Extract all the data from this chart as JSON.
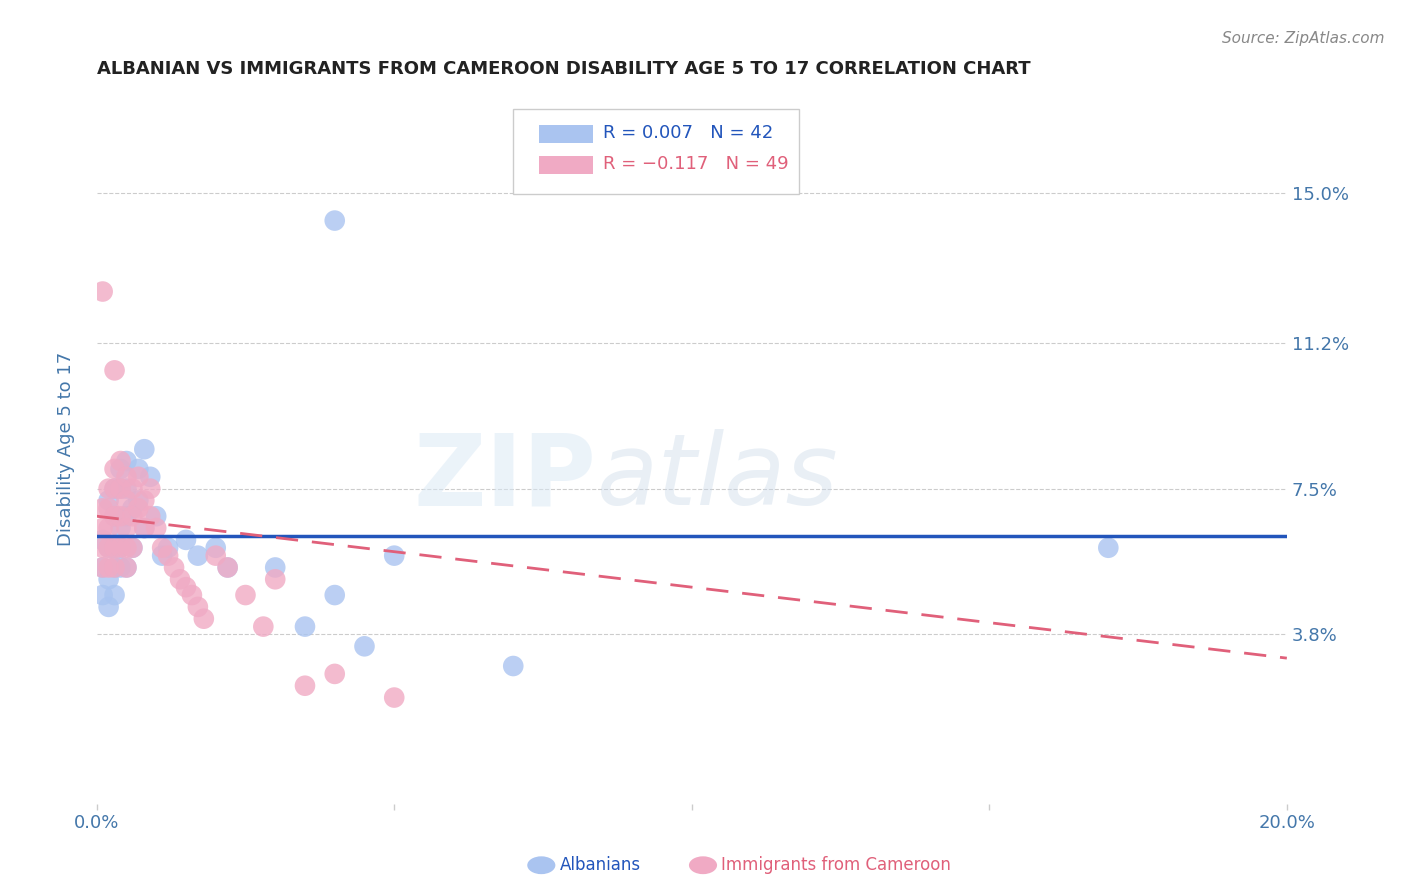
{
  "title": "ALBANIAN VS IMMIGRANTS FROM CAMEROON DISABILITY AGE 5 TO 17 CORRELATION CHART",
  "source": "Source: ZipAtlas.com",
  "ylabel": "Disability Age 5 to 17",
  "ytick_labels": [
    "15.0%",
    "11.2%",
    "7.5%",
    "3.8%"
  ],
  "ytick_values": [
    0.15,
    0.112,
    0.075,
    0.038
  ],
  "xlim": [
    0.0,
    0.2
  ],
  "ylim": [
    -0.005,
    0.175
  ],
  "legend_r1": "R = 0.007   N = 42",
  "legend_r2": "R = −0.117   N = 49",
  "albanians_x": [
    0.001,
    0.001,
    0.001,
    0.002,
    0.002,
    0.002,
    0.002,
    0.003,
    0.003,
    0.003,
    0.003,
    0.003,
    0.004,
    0.004,
    0.004,
    0.004,
    0.004,
    0.005,
    0.005,
    0.005,
    0.005,
    0.006,
    0.006,
    0.007,
    0.007,
    0.008,
    0.008,
    0.009,
    0.01,
    0.011,
    0.012,
    0.015,
    0.017,
    0.02,
    0.022,
    0.03,
    0.035,
    0.04,
    0.045,
    0.05,
    0.07,
    0.17
  ],
  "albanians_y": [
    0.062,
    0.055,
    0.048,
    0.072,
    0.06,
    0.052,
    0.045,
    0.075,
    0.068,
    0.06,
    0.055,
    0.048,
    0.08,
    0.075,
    0.065,
    0.06,
    0.055,
    0.082,
    0.075,
    0.068,
    0.055,
    0.07,
    0.06,
    0.08,
    0.072,
    0.085,
    0.065,
    0.078,
    0.068,
    0.058,
    0.06,
    0.062,
    0.058,
    0.06,
    0.055,
    0.055,
    0.04,
    0.048,
    0.035,
    0.058,
    0.03,
    0.06
  ],
  "albanians_highlight_x": [
    0.04
  ],
  "albanians_highlight_y": [
    0.143
  ],
  "cameroon_x": [
    0.001,
    0.001,
    0.001,
    0.001,
    0.002,
    0.002,
    0.002,
    0.002,
    0.002,
    0.003,
    0.003,
    0.003,
    0.003,
    0.003,
    0.004,
    0.004,
    0.004,
    0.004,
    0.005,
    0.005,
    0.005,
    0.005,
    0.005,
    0.006,
    0.006,
    0.006,
    0.007,
    0.007,
    0.008,
    0.008,
    0.009,
    0.009,
    0.01,
    0.011,
    0.012,
    0.013,
    0.014,
    0.015,
    0.016,
    0.017,
    0.018,
    0.02,
    0.022,
    0.025,
    0.028,
    0.03,
    0.035,
    0.04,
    0.05
  ],
  "cameroon_y": [
    0.07,
    0.065,
    0.06,
    0.055,
    0.075,
    0.07,
    0.065,
    0.06,
    0.055,
    0.08,
    0.075,
    0.068,
    0.06,
    0.055,
    0.082,
    0.075,
    0.068,
    0.06,
    0.078,
    0.072,
    0.065,
    0.06,
    0.055,
    0.075,
    0.068,
    0.06,
    0.078,
    0.07,
    0.072,
    0.065,
    0.075,
    0.068,
    0.065,
    0.06,
    0.058,
    0.055,
    0.052,
    0.05,
    0.048,
    0.045,
    0.042,
    0.058,
    0.055,
    0.048,
    0.04,
    0.052,
    0.025,
    0.028,
    0.022
  ],
  "cameroon_highlight_x": [
    0.001
  ],
  "cameroon_highlight_y": [
    0.125
  ],
  "cameroon_highlight2_x": [
    0.003
  ],
  "cameroon_highlight2_y": [
    0.105
  ],
  "albanian_color": "#aac4f0",
  "cameroon_color": "#f0aac4",
  "albanian_line_color": "#2255bb",
  "cameroon_line_color": "#e0607a",
  "watermark_zip": "ZIP",
  "watermark_atlas": "atlas",
  "background_color": "#ffffff",
  "grid_color": "#cccccc",
  "title_color": "#222222",
  "axis_tick_color": "#4477aa",
  "source_color": "#888888",
  "alb_trend_start_y": 0.063,
  "alb_trend_end_y": 0.063,
  "cam_trend_start_y": 0.068,
  "cam_trend_end_y": 0.032
}
